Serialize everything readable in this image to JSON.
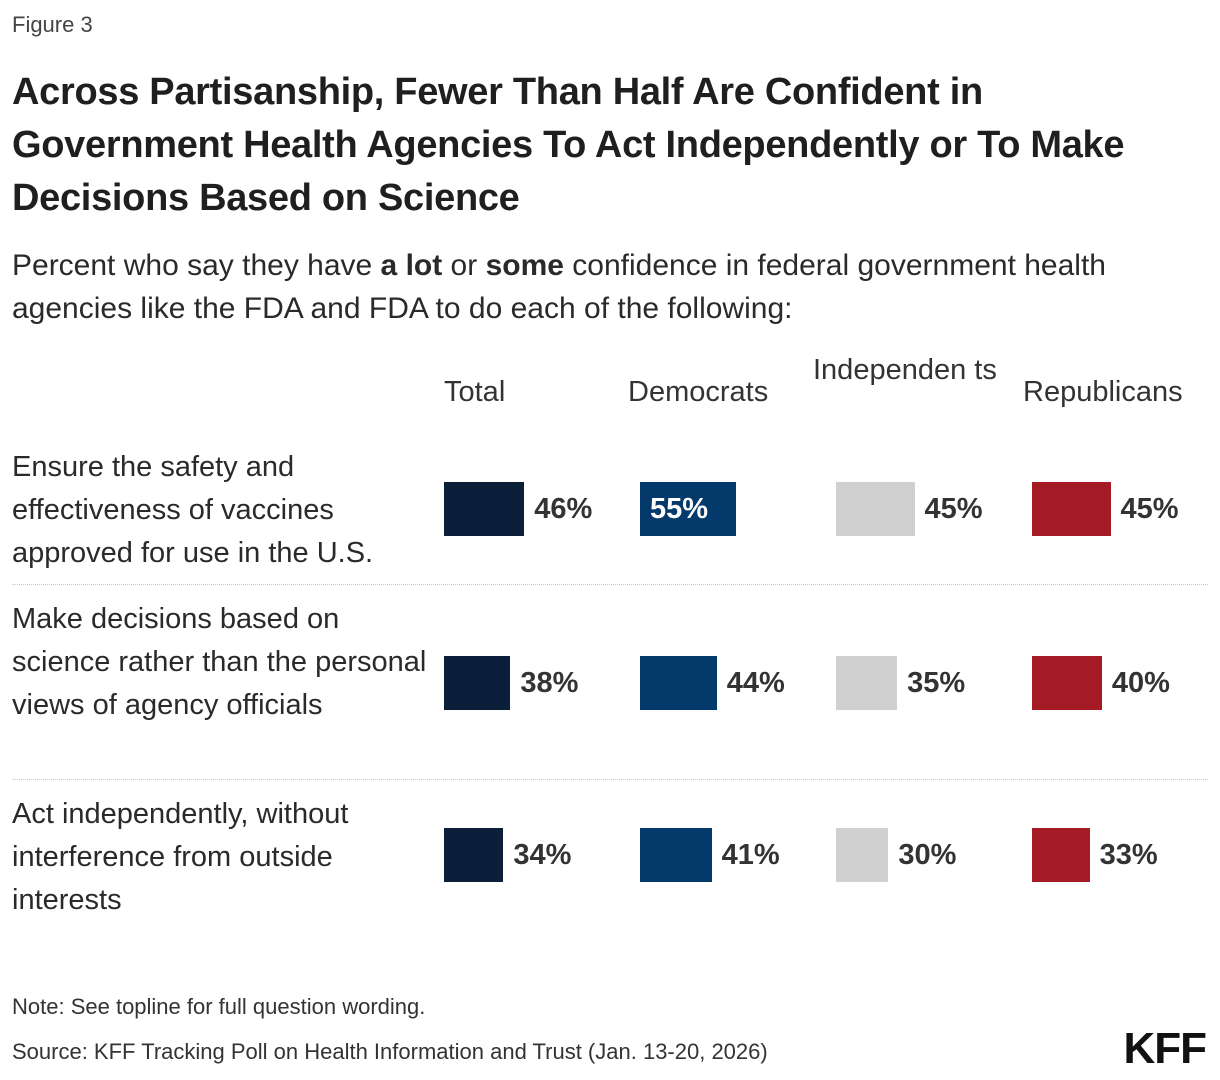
{
  "figure_label": "Figure 3",
  "title": "Across Partisanship, Fewer Than Half Are Confident in Government Health Agencies To Act Independently or To Make Decisions Based on Science",
  "subtitle": {
    "part1": "Percent who say they have ",
    "bold1": "a lot",
    "part2": " or ",
    "bold2": "some",
    "part3": " confidence in federal government health agencies like the FDA and FDA to do each of the following:"
  },
  "note": "Note: See topline for full question wording.",
  "source": "Source: KFF Tracking Poll on Health Information and Trust (Jan. 13-20, 2026)",
  "logo": "KFF",
  "chart_data": {
    "type": "bar",
    "categories": [
      "Ensure the safety and effectiveness of vaccines approved for use in the U.S.",
      "Make decisions based on science rather than the personal views of agency officials",
      "Act independently, without interference from outside interests"
    ],
    "series": [
      {
        "name": "Total",
        "values": [
          46,
          38,
          34
        ],
        "labels": [
          "46%",
          "38%",
          "34%"
        ],
        "color": "#0b1f3a"
      },
      {
        "name": "Democrats",
        "values": [
          55,
          44,
          41
        ],
        "labels": [
          "55%",
          "44%",
          "41%"
        ],
        "color": "#043a6b"
      },
      {
        "name": "Independents",
        "values": [
          45,
          35,
          30
        ],
        "labels": [
          "45%",
          "35%",
          "30%"
        ],
        "color": "#d0d0d0"
      },
      {
        "name": "Republicans",
        "values": [
          45,
          40,
          33
        ],
        "labels": [
          "45%",
          "40%",
          "33%"
        ],
        "color": "#a51b25"
      }
    ],
    "column_headers": [
      "Total",
      "Democrats",
      "Independen ts",
      "Republicans"
    ],
    "grid": false
  }
}
